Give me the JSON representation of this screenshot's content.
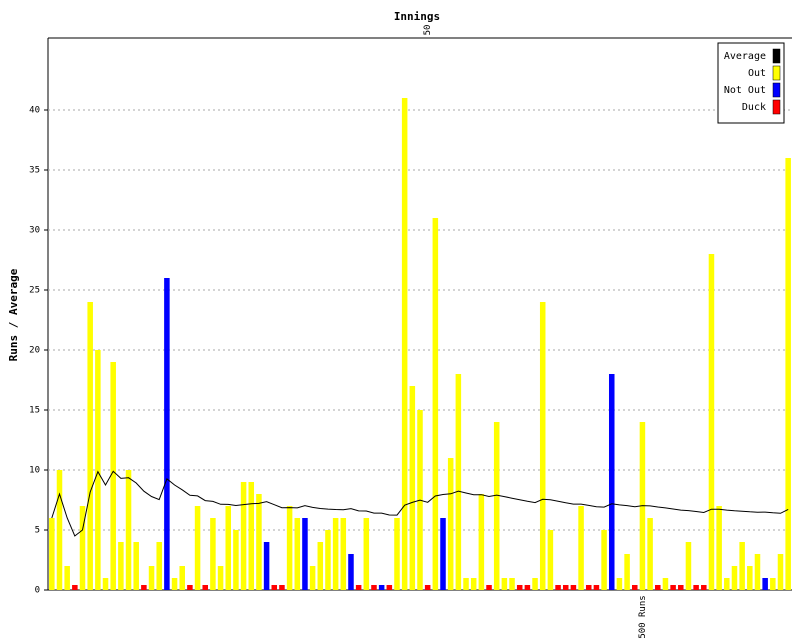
{
  "chart_data": {
    "type": "bar",
    "title": "Innings",
    "y_label": "Runs / Average",
    "ylim": [
      0,
      46
    ],
    "yticks": [
      0,
      5,
      10,
      15,
      20,
      25,
      30,
      35,
      40
    ],
    "grid": true,
    "legend": "top-right",
    "top_markers": [
      {
        "text": "50",
        "at": 50
      }
    ],
    "bottom_markers": [
      {
        "text": "500 Runs",
        "at": 78
      }
    ],
    "series": [
      {
        "name": "Average",
        "color": "#000000",
        "type": "line",
        "values": [
          6,
          8,
          6,
          4.5,
          5,
          8.17,
          9.86,
          8.75,
          9.89,
          9.3,
          9.36,
          8.92,
          8.23,
          7.79,
          7.53,
          9.27,
          8.75,
          8.35,
          7.89,
          7.84,
          7.45,
          7.38,
          7.14,
          7.13,
          7.04,
          7.12,
          7.19,
          7.22,
          7.37,
          7.11,
          6.86,
          6.87,
          6.84,
          7.03,
          6.88,
          6.79,
          6.74,
          6.71,
          6.69,
          6.78,
          6.59,
          6.58,
          6.41,
          6.41,
          6.25,
          6.24,
          7.07,
          7.3,
          7.48,
          7.31,
          7.83,
          7.96,
          8.02,
          8.23,
          8.08,
          7.94,
          7.94,
          7.79,
          7.91,
          7.78,
          7.65,
          7.52,
          7.39,
          7.28,
          7.56,
          7.52,
          7.39,
          7.27,
          7.16,
          7.16,
          7.05,
          6.94,
          6.91,
          7.18,
          7.09,
          7.03,
          6.93,
          7.03,
          7.01,
          6.92,
          6.84,
          6.75,
          6.66,
          6.62,
          6.54,
          6.46,
          6.73,
          6.73,
          6.66,
          6.6,
          6.57,
          6.52,
          6.48,
          6.49,
          6.43,
          6.39,
          6.72
        ]
      },
      {
        "name": "Out",
        "color": "#ffff00",
        "values": [
          6,
          10,
          2,
          null,
          7,
          24,
          20,
          1,
          19,
          4,
          10,
          4,
          null,
          2,
          4,
          null,
          1,
          2,
          null,
          7,
          null,
          6,
          2,
          7,
          5,
          9,
          9,
          8,
          null,
          null,
          null,
          7,
          6,
          null,
          2,
          4,
          5,
          6,
          6,
          null,
          null,
          6,
          null,
          null,
          null,
          6,
          41,
          17,
          15,
          null,
          31,
          null,
          11,
          18,
          1,
          1,
          8,
          null,
          14,
          1,
          1,
          null,
          null,
          1,
          24,
          5,
          null,
          null,
          null,
          7,
          null,
          null,
          5,
          null,
          1,
          3,
          null,
          14,
          6,
          null,
          1,
          null,
          null,
          4,
          null,
          null,
          28,
          7,
          1,
          2,
          4,
          2,
          3,
          null,
          1,
          3,
          36
        ]
      },
      {
        "name": "Not Out",
        "color": "#0000ff",
        "values": [
          null,
          null,
          null,
          null,
          null,
          null,
          null,
          null,
          null,
          null,
          null,
          null,
          null,
          null,
          null,
          26,
          null,
          null,
          null,
          null,
          null,
          null,
          null,
          null,
          null,
          null,
          null,
          null,
          4,
          null,
          null,
          null,
          null,
          6,
          null,
          null,
          null,
          null,
          null,
          3,
          null,
          null,
          null,
          0,
          null,
          null,
          null,
          null,
          null,
          null,
          null,
          6,
          null,
          null,
          null,
          null,
          null,
          null,
          null,
          null,
          null,
          null,
          null,
          null,
          null,
          null,
          null,
          null,
          null,
          null,
          null,
          null,
          null,
          18,
          null,
          null,
          null,
          null,
          null,
          null,
          null,
          null,
          null,
          null,
          null,
          null,
          null,
          null,
          null,
          null,
          null,
          null,
          null,
          1,
          null,
          null,
          null
        ]
      },
      {
        "name": "Duck",
        "color": "#ff0000",
        "values": [
          null,
          null,
          null,
          0,
          null,
          null,
          null,
          null,
          null,
          null,
          null,
          null,
          0,
          null,
          null,
          null,
          null,
          null,
          0,
          null,
          0,
          null,
          null,
          null,
          null,
          null,
          null,
          null,
          null,
          0,
          0,
          null,
          null,
          null,
          null,
          null,
          null,
          null,
          null,
          null,
          0,
          null,
          0,
          null,
          0,
          null,
          null,
          null,
          null,
          0,
          null,
          null,
          null,
          null,
          null,
          null,
          null,
          0,
          null,
          null,
          null,
          0,
          0,
          null,
          null,
          null,
          0,
          0,
          0,
          null,
          0,
          0,
          null,
          null,
          null,
          null,
          0,
          null,
          null,
          0,
          null,
          0,
          0,
          null,
          0,
          0,
          null,
          null,
          null,
          null,
          null,
          null,
          null,
          null,
          null,
          null,
          null
        ]
      }
    ]
  }
}
